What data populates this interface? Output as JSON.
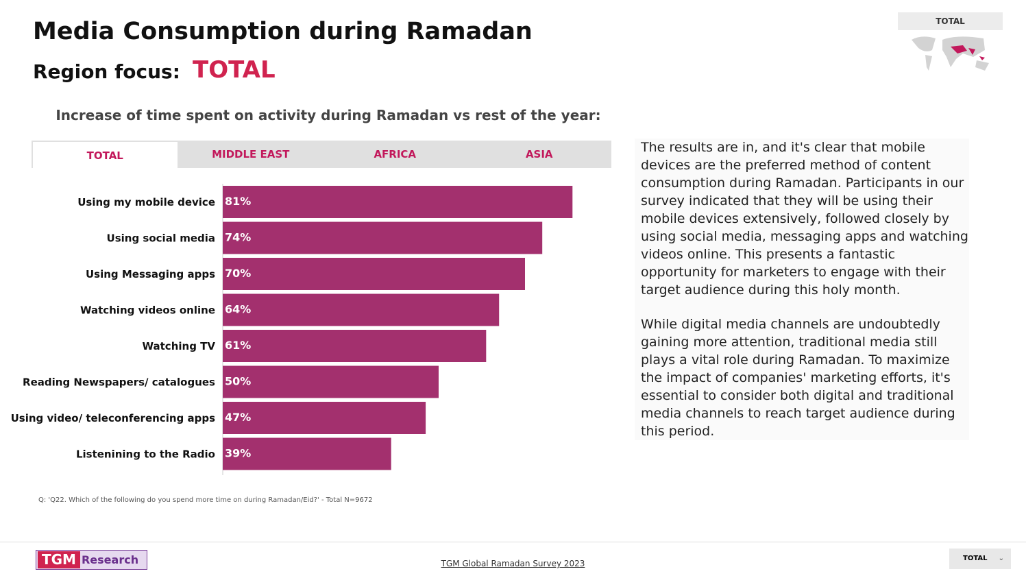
{
  "header": {
    "title": "Media Consumption during Ramadan",
    "region_label": "Region focus:",
    "region_value": "TOTAL"
  },
  "map_widget": {
    "label": "TOTAL"
  },
  "tabs": [
    "TOTAL",
    "MIDDLE EAST",
    "AFRICA",
    "ASIA"
  ],
  "chart_data": {
    "type": "bar",
    "orientation": "horizontal",
    "title": "Increase of time spent on activity during Ramadan vs rest of the year:",
    "categories": [
      "Using my mobile device",
      "Using social media",
      "Using Messaging apps",
      "Watching videos online",
      "Watching TV",
      "Reading Newspapers/ catalogues",
      "Using video/ teleconferencing apps",
      "Listenining to the Radio"
    ],
    "values": [
      81,
      74,
      70,
      64,
      61,
      50,
      47,
      39
    ],
    "value_labels": [
      "81%",
      "74%",
      "70%",
      "64%",
      "61%",
      "50%",
      "47%",
      "39%"
    ],
    "color": "#a3306e"
  },
  "note": "Q: 'Q22. Which of the following do you spend more time on during Ramadan/Eid?' - Total N=9672",
  "text": {
    "paragraphs": [
      "The results are in, and it's clear that mobile devices are the preferred method of content consumption during Ramadan. Participants in our survey indicated that they will be using their mobile devices extensively, followed closely by using social media, messaging apps and watching videos online. This presents a fantastic opportunity for marketers to engage with their target audience during this holy month.",
      "While digital media channels are undoubtedly gaining more attention, traditional media still plays a vital role during Ramadan. To maximize the impact of companies' marketing efforts, it's essential to consider both digital and traditional media channels to reach target audience during this period."
    ]
  },
  "footer": {
    "logo_main": "TGM",
    "logo_sub": "Research",
    "source": "TGM Global Ramadan Survey 2023",
    "dropdown": "TOTAL"
  }
}
